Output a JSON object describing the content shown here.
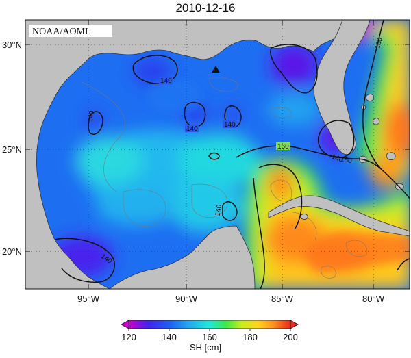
{
  "title": "2010-12-16",
  "credit": "NOAA/AOML",
  "lat_ticks": [
    "30°N",
    "25°N",
    "20°N"
  ],
  "lon_ticks": [
    "95°W",
    "90°W",
    "85°W",
    "80°W"
  ],
  "colorbar": {
    "label": "SH [cm]",
    "ticks": [
      "120",
      "140",
      "160",
      "180",
      "200"
    ],
    "min": 120,
    "max": 200,
    "colors": [
      "#cc00cc",
      "#4422ee",
      "#1e5ef2",
      "#22a8f0",
      "#22e8d8",
      "#3ce84a",
      "#c8ec1e",
      "#ffd21e",
      "#ff8c1e",
      "#e8281e"
    ]
  },
  "contour_labels": [
    "140",
    "140",
    "140",
    "140",
    "140",
    "140",
    "140",
    "160",
    "160",
    "160"
  ],
  "marker": "triangle"
}
